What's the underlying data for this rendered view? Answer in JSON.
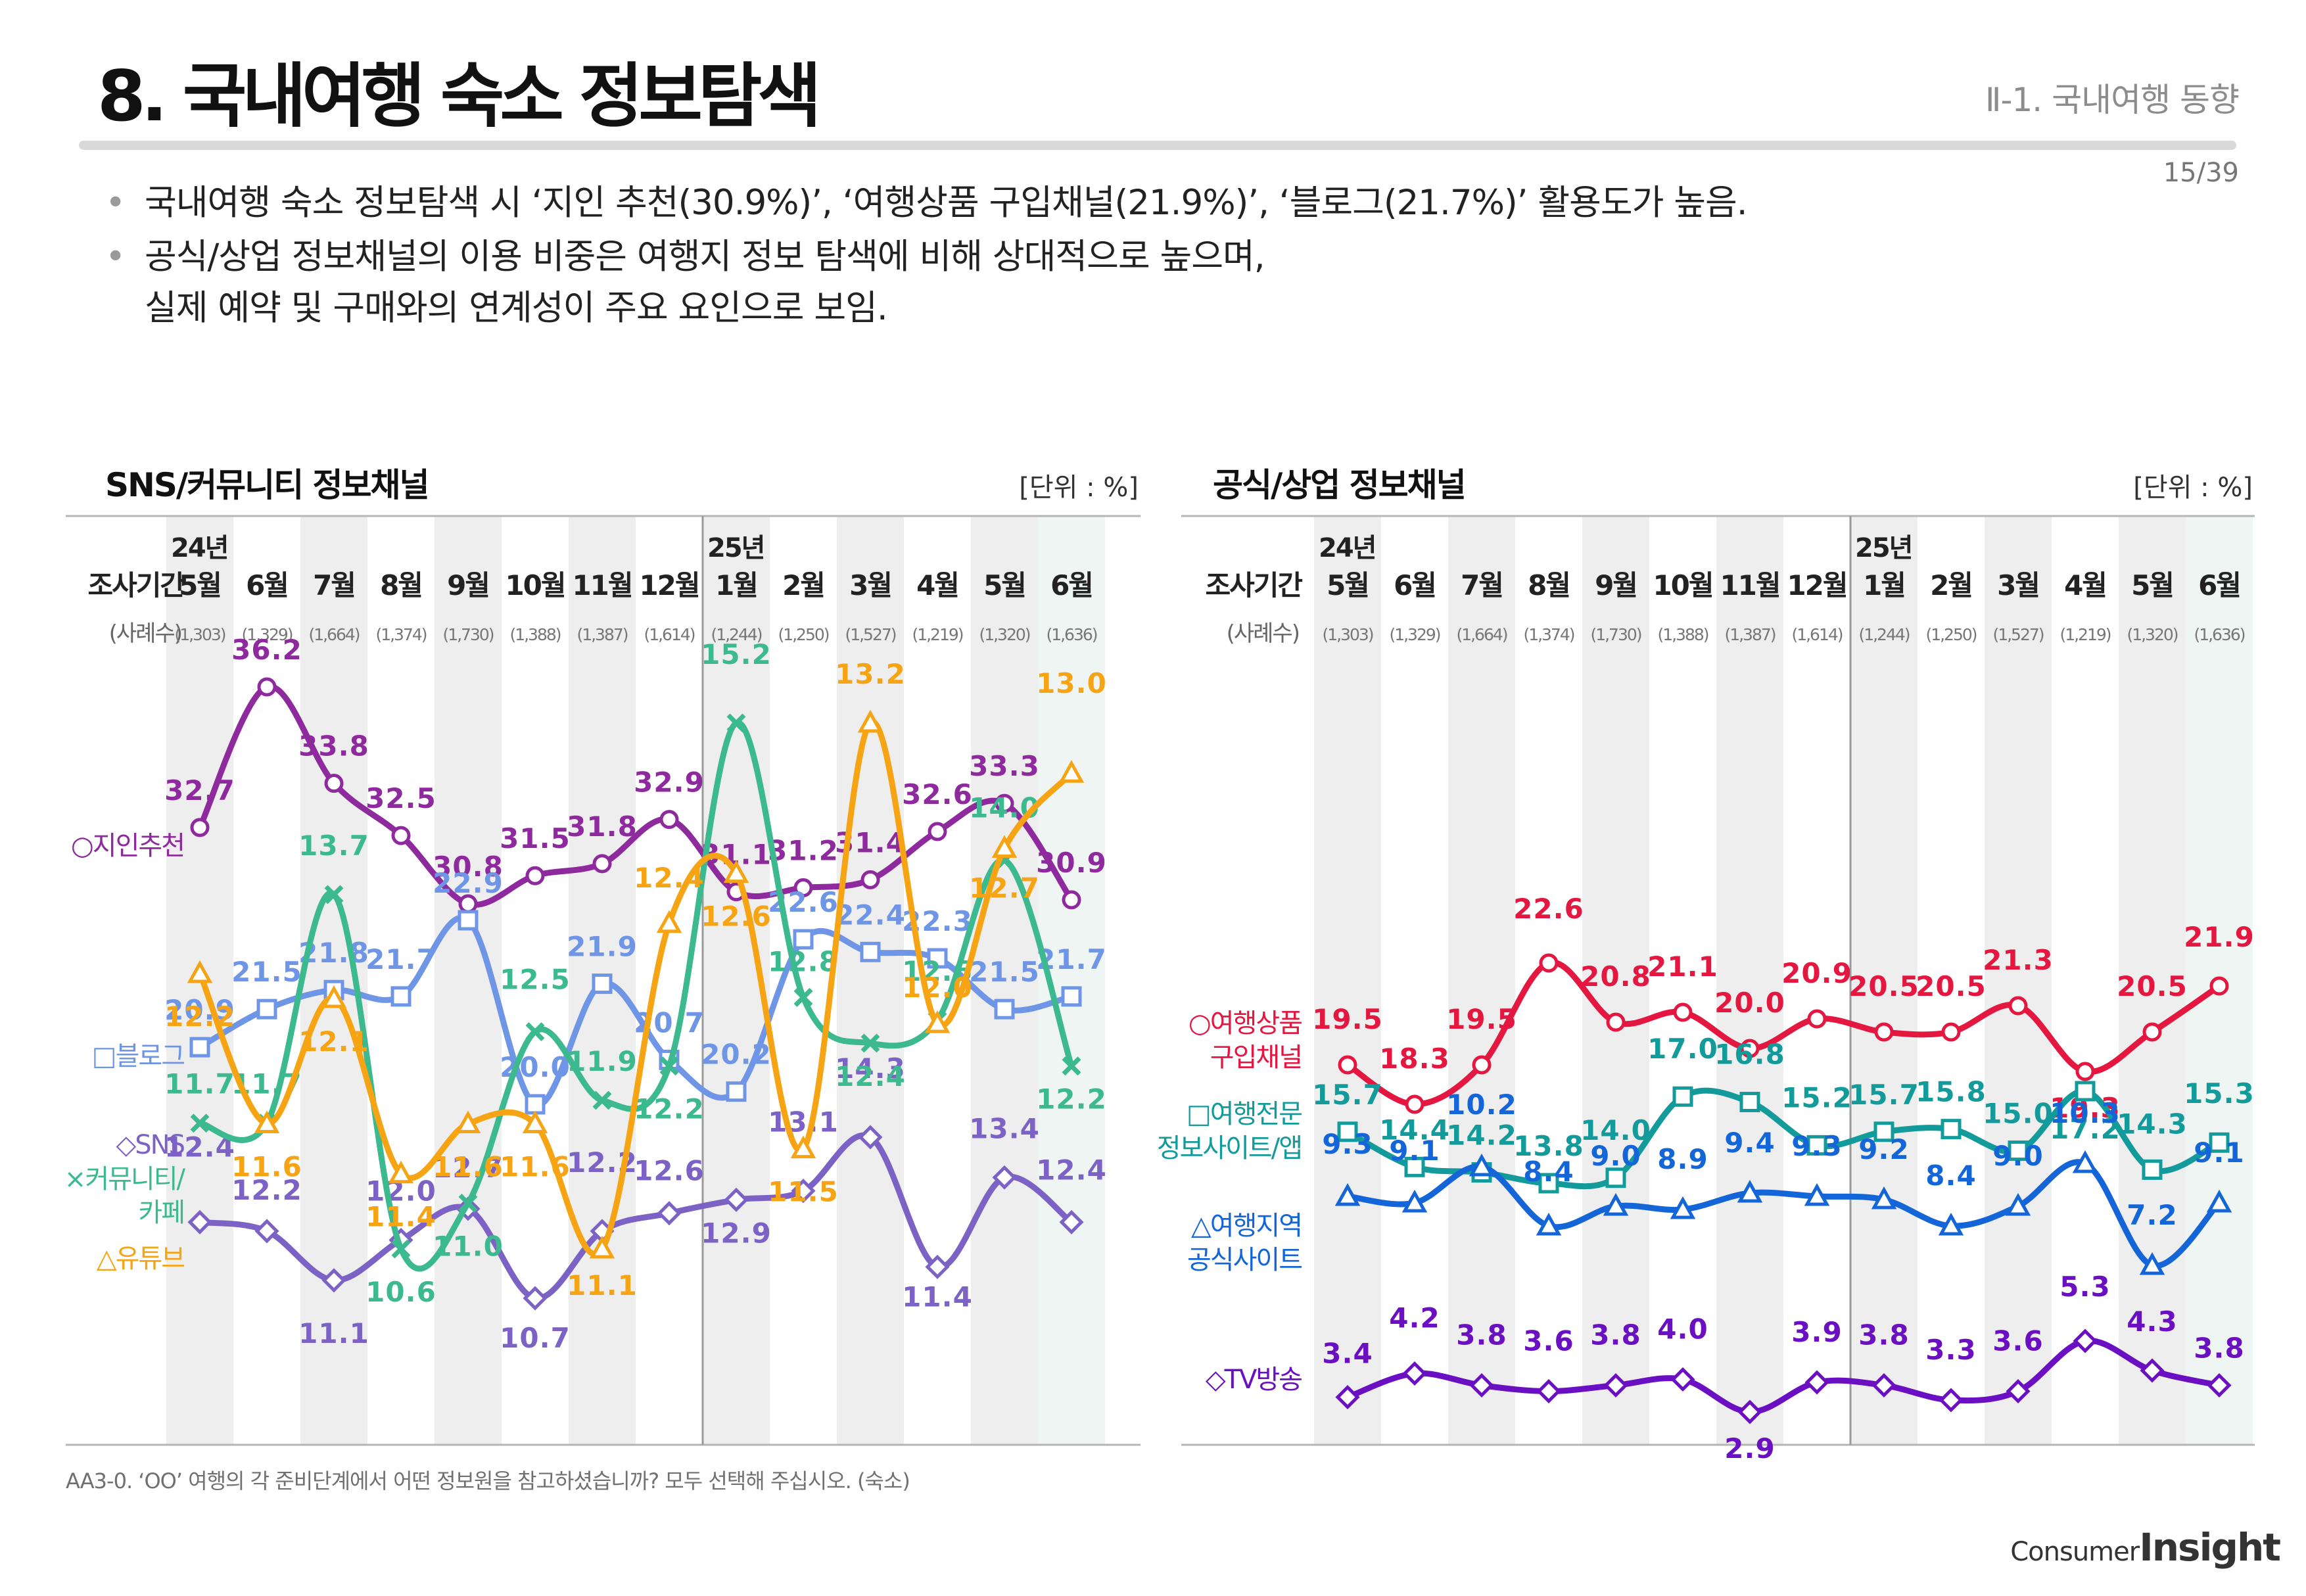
{
  "header": {
    "title": "8. 국내여행 숙소 정보탐색",
    "section": "Ⅱ-1. 국내여행 동향",
    "page": "15/39"
  },
  "bullets": [
    {
      "lines": [
        "국내여행 숙소 정보탐색 시 ‘지인 추천(30.9%)’, ‘여행상품 구입채널(21.9%)’, ‘블로그(21.7%)’ 활용도가 높음."
      ]
    },
    {
      "lines": [
        "공식/상업 정보채널의 이용 비중은 여행지 정보 탐색에 비해 상대적으로 높으며,",
        "실제 예약 및 구매와의 연계성이 주요 요인으로 보임."
      ]
    }
  ],
  "footnote": "AA3-0. ‘OO’ 여행의 각 준비단계에서 어떤 정보원을 참고하셨습니까? 모두 선택해 주십시오. (숙소)",
  "logo": {
    "line1": "Consumer",
    "line2": "Insight"
  },
  "axis": {
    "period_label": "조사기간",
    "n_label": "(사례수)",
    "year_labels": [
      {
        "index": 0,
        "text": "24년"
      },
      {
        "index": 8,
        "text": "25년"
      }
    ],
    "months": [
      "5월",
      "6월",
      "7월",
      "8월",
      "9월",
      "10월",
      "11월",
      "12월",
      "1월",
      "2월",
      "3월",
      "4월",
      "5월",
      "6월"
    ],
    "n": [
      "(1,303)",
      "(1,329)",
      "(1,664)",
      "(1,374)",
      "(1,730)",
      "(1,388)",
      "(1,387)",
      "(1,614)",
      "(1,244)",
      "(1,250)",
      "(1,527)",
      "(1,219)",
      "(1,320)",
      "(1,636)"
    ]
  },
  "chart_data": [
    {
      "type": "line",
      "title": "SNS/커뮤니티 정보채널",
      "unit": "[단위 : %]",
      "categories": [
        "24년 5월",
        "6월",
        "7월",
        "8월",
        "9월",
        "10월",
        "11월",
        "12월",
        "25년 1월",
        "2월",
        "3월",
        "4월",
        "5월",
        "6월"
      ],
      "series": [
        {
          "name": "○지인추천",
          "label_lines": [
            "○지인추천"
          ],
          "marker": "circle",
          "color": "#8e2a9e",
          "values": [
            32.7,
            36.2,
            33.8,
            32.5,
            30.8,
            31.5,
            31.8,
            32.9,
            31.1,
            31.2,
            31.4,
            32.6,
            33.3,
            30.9
          ]
        },
        {
          "name": "□블로그",
          "label_lines": [
            "□블로그"
          ],
          "marker": "square",
          "color": "#6e95e6",
          "values": [
            20.9,
            21.5,
            21.8,
            21.7,
            22.9,
            20.0,
            21.9,
            20.7,
            20.2,
            22.6,
            22.4,
            22.3,
            21.5,
            21.7
          ]
        },
        {
          "name": "◇SNS",
          "label_lines": [
            "◇SNS"
          ],
          "marker": "diamond",
          "color": "#7b62c4",
          "values": [
            12.4,
            12.2,
            11.1,
            12.0,
            12.7,
            10.7,
            12.2,
            12.6,
            12.9,
            13.1,
            14.3,
            11.4,
            13.4,
            12.4
          ]
        },
        {
          "name": "×커뮤니티/카페",
          "label_lines": [
            "×커뮤니티/",
            "카페"
          ],
          "marker": "x",
          "color": "#3db98f",
          "values": [
            11.7,
            11.7,
            13.7,
            10.6,
            11.0,
            12.5,
            11.9,
            12.2,
            15.2,
            12.8,
            12.4,
            12.6,
            14.0,
            12.2
          ]
        },
        {
          "name": "△유튜브",
          "label_lines": [
            "△유튜브"
          ],
          "marker": "triangle",
          "color": "#f6a413",
          "values": [
            12.2,
            11.6,
            12.1,
            11.4,
            11.6,
            11.6,
            11.1,
            12.4,
            12.6,
            11.5,
            13.2,
            12.0,
            12.7,
            13.0
          ]
        }
      ]
    },
    {
      "type": "line",
      "title": "공식/상업 정보채널",
      "unit": "[단위 : %]",
      "categories": [
        "24년 5월",
        "6월",
        "7월",
        "8월",
        "9월",
        "10월",
        "11월",
        "12월",
        "25년 1월",
        "2월",
        "3월",
        "4월",
        "5월",
        "6월"
      ],
      "series": [
        {
          "name": "○여행상품 구입채널",
          "label_lines": [
            "○여행상품",
            "구입채널"
          ],
          "marker": "circle",
          "color": "#e3173f",
          "values": [
            19.5,
            18.3,
            19.5,
            22.6,
            20.8,
            21.1,
            20.0,
            20.9,
            20.5,
            20.5,
            21.3,
            19.3,
            20.5,
            21.9
          ]
        },
        {
          "name": "□여행전문 정보사이트/앱",
          "label_lines": [
            "□여행전문",
            "정보사이트/앱"
          ],
          "marker": "square",
          "color": "#139a9a",
          "values": [
            15.7,
            14.4,
            14.2,
            13.8,
            14.0,
            17.0,
            16.8,
            15.2,
            15.7,
            15.8,
            15.0,
            17.2,
            14.3,
            15.3
          ]
        },
        {
          "name": "△여행지역 공식사이트",
          "label_lines": [
            "△여행지역",
            "공식사이트"
          ],
          "marker": "triangle",
          "color": "#1466d8",
          "values": [
            9.3,
            9.1,
            10.2,
            8.4,
            9.0,
            8.9,
            9.4,
            9.3,
            9.2,
            8.4,
            9.0,
            10.3,
            7.2,
            9.1
          ]
        },
        {
          "name": "◇TV방송",
          "label_lines": [
            "◇TV방송"
          ],
          "marker": "diamond",
          "color": "#6a0fc2",
          "values": [
            3.4,
            4.2,
            3.8,
            3.6,
            3.8,
            4.0,
            2.9,
            3.9,
            3.8,
            3.3,
            3.6,
            5.3,
            4.3,
            3.8
          ]
        }
      ]
    }
  ]
}
